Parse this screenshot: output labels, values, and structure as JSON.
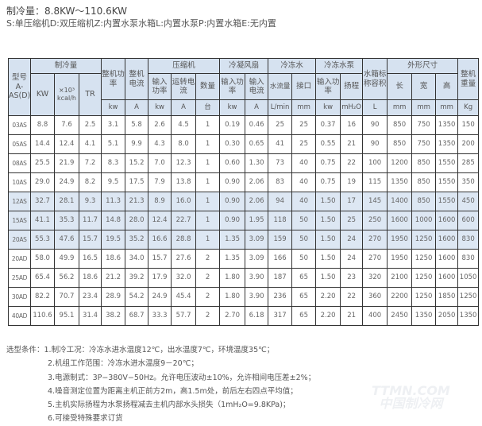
{
  "title": "制冷量：8.8KW～110.6KW",
  "legend": "S:单压缩机D:双压缩机Z:内置水泵水箱L:内置水泵P:内置水箱E:无内置",
  "header": {
    "model": "型号 A-AS(D)",
    "cooling": "制冷量",
    "kw": "KW",
    "kcal": "×10³ kcal/h",
    "tr": "TR",
    "power": "整机功率",
    "current": "整机电流",
    "compressor": "压缩机",
    "comp_power": "输入功率",
    "comp_current": "运转电流",
    "comp_qty": "数量",
    "fan": "冷凝风扇",
    "fan_power": "输入功率",
    "fan_current": "输入电流",
    "water": "冷冻水",
    "flow": "水流量",
    "port": "接口",
    "pump": "冷冻水泵",
    "pump_power": "输入功率",
    "head": "扬程",
    "tank": "水箱标称容积",
    "dims": "外形尺寸",
    "len": "长",
    "wid": "宽",
    "hei": "高",
    "weight": "整机重量",
    "units": [
      "kw",
      "A",
      "kw",
      "A",
      "台",
      "kw",
      "A",
      "L/min",
      "mm",
      "kw",
      "mH₂O",
      "L",
      "mm",
      "mm",
      "mm",
      "Kg"
    ]
  },
  "rows": [
    [
      "03AS",
      "8.8",
      "7.6",
      "2.5",
      "3.1",
      "5.8",
      "2.6",
      "4.5",
      "1",
      "0.19",
      "0.46",
      "25",
      "25",
      "0.37",
      "16",
      "90",
      "850",
      "750",
      "1350",
      "150"
    ],
    [
      "05AS",
      "14.4",
      "12.4",
      "4.1",
      "5.1",
      "9.9",
      "4.3",
      "8.0",
      "1",
      "0.30",
      "0.65",
      "41",
      "25",
      "0.55",
      "21",
      "90",
      "850",
      "750",
      "1350",
      "200"
    ],
    [
      "08AS",
      "25.5",
      "21.9",
      "7.2",
      "8.3",
      "15.2",
      "7.0",
      "12.3",
      "1",
      "0.60",
      "1.30",
      "73",
      "40",
      "0.75",
      "22",
      "100",
      "1200",
      "850",
      "1550",
      "285"
    ],
    [
      "10AS",
      "29.0",
      "24.9",
      "8.2",
      "9.5",
      "17.5",
      "7.9",
      "13.8",
      "1",
      "0.90",
      "2.06",
      "83",
      "40",
      "0.75",
      "19",
      "115",
      "1350",
      "850",
      "1550",
      "350"
    ],
    [
      "12AS",
      "32.7",
      "28.1",
      "9.3",
      "11.3",
      "21.3",
      "8.9",
      "16.0",
      "1",
      "0.90",
      "2.06",
      "94",
      "40",
      "1.50",
      "17",
      "145",
      "1400",
      "850",
      "1550",
      "450"
    ],
    [
      "15AS",
      "41.1",
      "35.3",
      "11.7",
      "14.8",
      "28.0",
      "12.4",
      "22.7",
      "1",
      "0.90",
      "1.95",
      "118",
      "50",
      "1.50",
      "25",
      "250",
      "1600",
      "1000",
      "1600",
      "600"
    ],
    [
      "20AS",
      "55.3",
      "47.6",
      "15.7",
      "19.5",
      "35.2",
      "16.6",
      "28.8",
      "1",
      "1.35",
      "3.09",
      "159",
      "50",
      "1.50",
      "24",
      "270",
      "1950",
      "1250",
      "1600",
      "830"
    ],
    [
      "20AD",
      "58.0",
      "49.9",
      "16.5",
      "18.6",
      "34.0",
      "15.7",
      "27.6",
      "2",
      "1.35",
      "3.09",
      "166",
      "50",
      "1.50",
      "24",
      "270",
      "1950",
      "1250",
      "1600",
      "830"
    ],
    [
      "25AD",
      "65.4",
      "56.2",
      "18.6",
      "21.2",
      "39.2",
      "17.9",
      "32.0",
      "2",
      "1.80",
      "3.90",
      "187",
      "65",
      "1.50",
      "23",
      "320",
      "2100",
      "1250",
      "1600",
      "1050"
    ],
    [
      "30AD",
      "82.2",
      "70.7",
      "23.4",
      "28.9",
      "54.2",
      "24.9",
      "45.4",
      "2",
      "1.80",
      "3.90",
      "236",
      "65",
      "2.20",
      "22",
      "360",
      "2200",
      "1250",
      "1850",
      "1250"
    ],
    [
      "40AD",
      "110.6",
      "95.1",
      "31.4",
      "38.2",
      "68.7",
      "33.3",
      "57.7",
      "2",
      "2.70",
      "6.18",
      "317",
      "65",
      "2.20",
      "21",
      "400",
      "2450",
      "1350",
      "2050",
      "1350"
    ]
  ],
  "highlight_rows": [
    "12AS",
    "15AS",
    "20AS"
  ],
  "highlight_color": "#dde7f3",
  "header_color": "#d6e2f0",
  "notes": {
    "label": "选型条件：",
    "items": [
      "1.制冷工况：冷冻水进水温度12℃，出水温度7℃，环境温度35℃；",
      "2.机组工作范围：冷冻水进水温度9－20℃；",
      "3.电源制式：3P−380V−50Hz。允许电压波动±10%，允许相间电压差±2%；",
      "4.噪音测定位置为距离主机正前方2m，高1.5m处，前后左右四点平均值；",
      "5.主机实际扬程为水泵扬程减去主机内部水头损失（1mH₂O=9.8KPa)；",
      "6.可接受特殊要求订货"
    ]
  },
  "watermark": "TTMN.COM 中国制冷网"
}
